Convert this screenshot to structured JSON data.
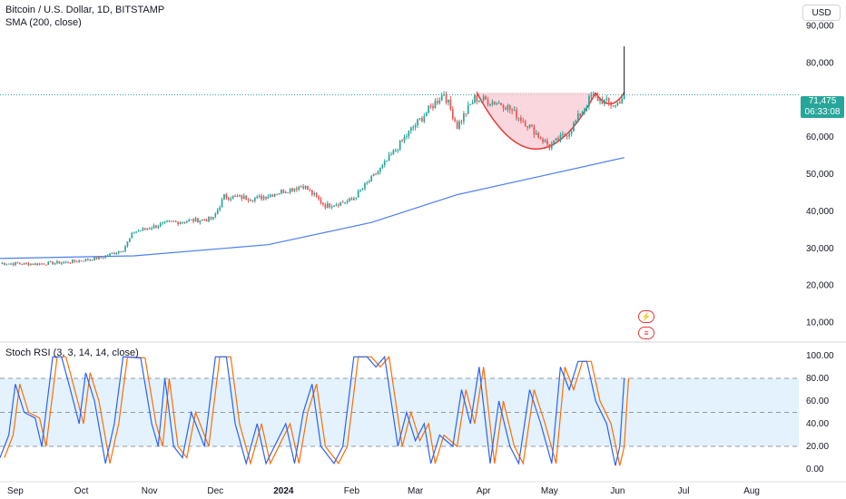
{
  "legend": {
    "title": "Bitcoin / U.S. Dollar, 1D, BITSTAMP",
    "sma": "SMA (200, close)",
    "stoch": "Stoch RSI (3, 3, 14, 14, close)"
  },
  "currency_button": "USD",
  "last_price": {
    "value": "71,475",
    "countdown": "06:33:08"
  },
  "colors": {
    "up": "#26a69a",
    "down": "#ef5350",
    "sma": "#4a7ef0",
    "stoch_k": "#2962ff",
    "stoch_d": "#ff6d00",
    "band": "#e3f2fd",
    "pattern_fill": "#f8c9d3",
    "pattern_stroke": "#e53935"
  },
  "icons": [
    "lightning-icon",
    "us-flag-icon"
  ],
  "chart_data": [
    {
      "type": "candlestick",
      "title": "Bitcoin / U.S. Dollar, 1D, BITSTAMP",
      "y_ticks": [
        "90,000",
        "80,000",
        "70,000",
        "60,000",
        "50,000",
        "40,000",
        "30,000",
        "20,000",
        "10,000"
      ],
      "ylim": [
        5000,
        97000
      ],
      "x_ticks": [
        "Sep",
        "Oct",
        "Nov",
        "Dec",
        "2024",
        "Feb",
        "Mar",
        "Apr",
        "May",
        "Jun",
        "Jul",
        "Aug"
      ],
      "x_tick_dates": [
        "2023-09-01",
        "2023-10-01",
        "2023-11-01",
        "2023-12-01",
        "2024-01-01",
        "2024-02-01",
        "2024-03-01",
        "2024-04-01",
        "2024-05-01",
        "2024-06-01",
        "2024-07-01",
        "2024-08-01"
      ],
      "x_range": [
        "2023-08-25",
        "2024-08-15"
      ],
      "close_anchors": [
        {
          "date": "2023-08-25",
          "close": 26000
        },
        {
          "date": "2023-09-10",
          "close": 25800
        },
        {
          "date": "2023-09-25",
          "close": 26300
        },
        {
          "date": "2023-10-10",
          "close": 27500
        },
        {
          "date": "2023-10-20",
          "close": 29700
        },
        {
          "date": "2023-10-25",
          "close": 34500
        },
        {
          "date": "2023-11-10",
          "close": 37000
        },
        {
          "date": "2023-11-30",
          "close": 38000
        },
        {
          "date": "2023-12-05",
          "close": 44000
        },
        {
          "date": "2023-12-20",
          "close": 43500
        },
        {
          "date": "2024-01-10",
          "close": 47000
        },
        {
          "date": "2024-01-20",
          "close": 41500
        },
        {
          "date": "2024-02-01",
          "close": 43000
        },
        {
          "date": "2024-02-15",
          "close": 52000
        },
        {
          "date": "2024-02-28",
          "close": 62000
        },
        {
          "date": "2024-03-14",
          "close": 72000
        },
        {
          "date": "2024-03-20",
          "close": 63000
        },
        {
          "date": "2024-03-28",
          "close": 70500
        },
        {
          "date": "2024-04-10",
          "close": 69000
        },
        {
          "date": "2024-04-20",
          "close": 64000
        },
        {
          "date": "2024-05-01",
          "close": 57500
        },
        {
          "date": "2024-05-10",
          "close": 61500
        },
        {
          "date": "2024-05-20",
          "close": 71000
        },
        {
          "date": "2024-05-31",
          "close": 68500
        },
        {
          "date": "2024-06-04",
          "close": 71475
        }
      ],
      "last_candle_high": 84500,
      "sma200": {
        "name": "SMA (200, close)",
        "points": [
          {
            "date": "2023-08-25",
            "value": 27300
          },
          {
            "date": "2023-10-25",
            "value": 28000
          },
          {
            "date": "2023-12-25",
            "value": 31000
          },
          {
            "date": "2024-02-10",
            "value": 37000
          },
          {
            "date": "2024-03-20",
            "value": 44500
          },
          {
            "date": "2024-05-01",
            "value": 50000
          },
          {
            "date": "2024-06-04",
            "value": 54500
          }
        ]
      },
      "last_price": 71475
    },
    {
      "type": "line",
      "title": "Stoch RSI (3, 3, 14, 14, close)",
      "y_ticks": [
        "100.00",
        "80.00",
        "60.00",
        "40.00",
        "20.00",
        "0.00"
      ],
      "ylim": [
        0,
        100
      ],
      "bands": [
        20,
        80
      ],
      "series": [
        {
          "name": "K",
          "anchors": [
            {
              "date": "2023-08-25",
              "value": 10
            },
            {
              "date": "2023-08-29",
              "value": 30
            },
            {
              "date": "2023-09-01",
              "value": 75
            },
            {
              "date": "2023-09-05",
              "value": 50
            },
            {
              "date": "2023-09-10",
              "value": 45
            },
            {
              "date": "2023-09-13",
              "value": 20
            },
            {
              "date": "2023-09-18",
              "value": 99
            },
            {
              "date": "2023-09-22",
              "value": 99
            },
            {
              "date": "2023-09-26",
              "value": 70
            },
            {
              "date": "2023-09-30",
              "value": 40
            },
            {
              "date": "2023-10-03",
              "value": 85
            },
            {
              "date": "2023-10-07",
              "value": 60
            },
            {
              "date": "2023-10-12",
              "value": 5
            },
            {
              "date": "2023-10-16",
              "value": 40
            },
            {
              "date": "2023-10-20",
              "value": 99
            },
            {
              "date": "2023-10-28",
              "value": 98
            },
            {
              "date": "2023-11-02",
              "value": 40
            },
            {
              "date": "2023-11-05",
              "value": 20
            },
            {
              "date": "2023-11-08",
              "value": 80
            },
            {
              "date": "2023-11-12",
              "value": 20
            },
            {
              "date": "2023-11-16",
              "value": 10
            },
            {
              "date": "2023-11-20",
              "value": 50
            },
            {
              "date": "2023-11-26",
              "value": 20
            },
            {
              "date": "2023-12-01",
              "value": 99
            },
            {
              "date": "2023-12-06",
              "value": 99
            },
            {
              "date": "2023-12-10",
              "value": 40
            },
            {
              "date": "2023-12-15",
              "value": 5
            },
            {
              "date": "2023-12-20",
              "value": 40
            },
            {
              "date": "2023-12-24",
              "value": 5
            },
            {
              "date": "2024-01-02",
              "value": 40
            },
            {
              "date": "2024-01-06",
              "value": 5
            },
            {
              "date": "2024-01-10",
              "value": 50
            },
            {
              "date": "2024-01-14",
              "value": 75
            },
            {
              "date": "2024-01-18",
              "value": 20
            },
            {
              "date": "2024-01-24",
              "value": 5
            },
            {
              "date": "2024-01-28",
              "value": 20
            },
            {
              "date": "2024-02-02",
              "value": 99
            },
            {
              "date": "2024-02-08",
              "value": 99
            },
            {
              "date": "2024-02-12",
              "value": 90
            },
            {
              "date": "2024-02-16",
              "value": 99
            },
            {
              "date": "2024-02-22",
              "value": 20
            },
            {
              "date": "2024-02-26",
              "value": 50
            },
            {
              "date": "2024-03-01",
              "value": 25
            },
            {
              "date": "2024-03-05",
              "value": 40
            },
            {
              "date": "2024-03-08",
              "value": 5
            },
            {
              "date": "2024-03-12",
              "value": 30
            },
            {
              "date": "2024-03-18",
              "value": 20
            },
            {
              "date": "2024-03-22",
              "value": 70
            },
            {
              "date": "2024-03-26",
              "value": 40
            },
            {
              "date": "2024-03-30",
              "value": 90
            },
            {
              "date": "2024-04-04",
              "value": 5
            },
            {
              "date": "2024-04-08",
              "value": 60
            },
            {
              "date": "2024-04-13",
              "value": 20
            },
            {
              "date": "2024-04-17",
              "value": 5
            },
            {
              "date": "2024-04-22",
              "value": 70
            },
            {
              "date": "2024-04-27",
              "value": 40
            },
            {
              "date": "2024-05-02",
              "value": 5
            },
            {
              "date": "2024-05-06",
              "value": 90
            },
            {
              "date": "2024-05-10",
              "value": 70
            },
            {
              "date": "2024-05-14",
              "value": 95
            },
            {
              "date": "2024-05-18",
              "value": 95
            },
            {
              "date": "2024-05-22",
              "value": 60
            },
            {
              "date": "2024-05-27",
              "value": 40
            },
            {
              "date": "2024-05-31",
              "value": 3
            },
            {
              "date": "2024-06-02",
              "value": 20
            },
            {
              "date": "2024-06-04",
              "value": 80
            }
          ]
        },
        {
          "name": "D",
          "lag_days": 2
        }
      ]
    }
  ]
}
